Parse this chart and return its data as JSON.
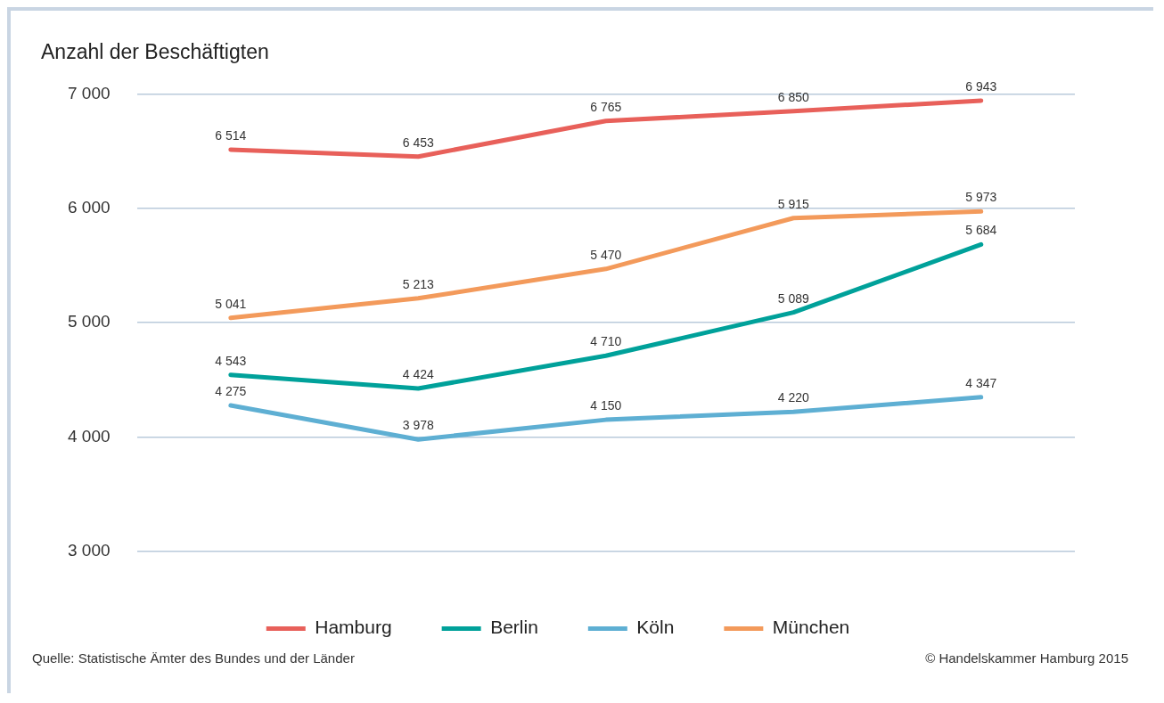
{
  "chart_data": {
    "type": "line",
    "title": "Anzahl der Beschäftigten",
    "categories": [
      null,
      null,
      null,
      null,
      null
    ],
    "series": [
      {
        "name": "Hamburg",
        "color": "#e8605a",
        "values": [
          6514,
          6453,
          6765,
          6850,
          6943
        ]
      },
      {
        "name": "Berlin",
        "color": "#00a19a",
        "values": [
          4543,
          4424,
          4710,
          5089,
          5684
        ]
      },
      {
        "name": "Köln",
        "color": "#5eafd3",
        "values": [
          4275,
          3978,
          4150,
          4220,
          4347
        ]
      },
      {
        "name": "München",
        "color": "#f39a5b",
        "values": [
          5041,
          5213,
          5470,
          5915,
          5973
        ]
      }
    ],
    "ylim": [
      3000,
      7000
    ],
    "yticks": [
      {
        "value": 3000,
        "label": "3 000"
      },
      {
        "value": 4000,
        "label": "4 000"
      },
      {
        "value": 5000,
        "label": "5 000"
      },
      {
        "value": 6000,
        "label": "6 000"
      },
      {
        "value": 7000,
        "label": "7 000"
      }
    ],
    "grid": "y",
    "legend": "bottom",
    "marker": "none",
    "line_style": "solid",
    "data_labels": true,
    "annotations": [
      "Quelle: Statistische Ämter des Bundes und der Länder",
      "© Handelskammer Hamburg 2015"
    ]
  }
}
